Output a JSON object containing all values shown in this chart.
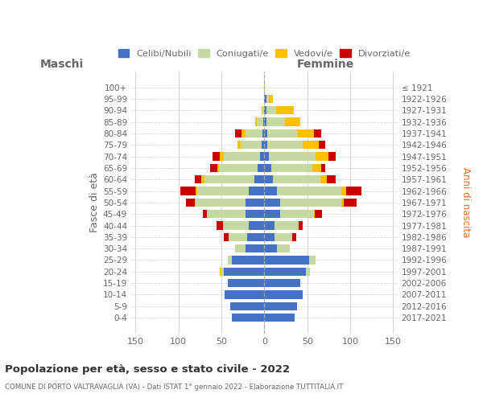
{
  "age_groups_display": [
    "0-4",
    "5-9",
    "10-14",
    "15-19",
    "20-24",
    "25-29",
    "30-34",
    "35-39",
    "40-44",
    "45-49",
    "50-54",
    "55-59",
    "60-64",
    "65-69",
    "70-74",
    "75-79",
    "80-84",
    "85-89",
    "90-94",
    "95-99",
    "100+"
  ],
  "birth_years_display": [
    "2017-2021",
    "2012-2016",
    "2007-2011",
    "2002-2006",
    "1997-2001",
    "1992-1996",
    "1987-1991",
    "1982-1986",
    "1977-1981",
    "1972-1976",
    "1967-1971",
    "1962-1966",
    "1957-1961",
    "1952-1956",
    "1947-1951",
    "1942-1946",
    "1937-1941",
    "1932-1936",
    "1927-1931",
    "1922-1926",
    "≤ 1921"
  ],
  "male_celibe": [
    38,
    40,
    46,
    43,
    47,
    38,
    22,
    20,
    18,
    22,
    22,
    18,
    12,
    8,
    5,
    3,
    2,
    1,
    0,
    0,
    0
  ],
  "male_coniugato": [
    0,
    0,
    0,
    0,
    3,
    5,
    12,
    22,
    30,
    45,
    58,
    60,
    58,
    45,
    42,
    25,
    20,
    8,
    2,
    0,
    0
  ],
  "male_vedovo": [
    0,
    0,
    0,
    0,
    2,
    0,
    0,
    0,
    0,
    0,
    1,
    2,
    3,
    2,
    5,
    3,
    5,
    2,
    1,
    0,
    0
  ],
  "male_divorziato": [
    0,
    0,
    0,
    0,
    0,
    0,
    0,
    5,
    8,
    5,
    10,
    18,
    8,
    8,
    8,
    0,
    7,
    0,
    0,
    0,
    0
  ],
  "female_nubile": [
    35,
    38,
    45,
    42,
    48,
    52,
    15,
    12,
    12,
    18,
    18,
    15,
    10,
    8,
    5,
    3,
    3,
    2,
    2,
    2,
    0
  ],
  "female_coniugata": [
    0,
    0,
    0,
    0,
    5,
    8,
    15,
    20,
    28,
    40,
    72,
    75,
    55,
    48,
    55,
    42,
    35,
    22,
    12,
    3,
    0
  ],
  "female_vedova": [
    0,
    0,
    0,
    0,
    0,
    0,
    0,
    0,
    0,
    1,
    2,
    5,
    8,
    10,
    15,
    18,
    20,
    18,
    20,
    5,
    1
  ],
  "female_divorziata": [
    0,
    0,
    0,
    0,
    0,
    0,
    0,
    5,
    5,
    8,
    15,
    18,
    10,
    5,
    8,
    8,
    8,
    0,
    0,
    0,
    0
  ],
  "color_celibe": "#4472c4",
  "color_coniugato": "#c5d9a0",
  "color_vedovo": "#ffc000",
  "color_divorziato": "#cc0000",
  "xlim": 155,
  "xticks": [
    -150,
    -100,
    -50,
    0,
    50,
    100,
    150
  ],
  "xticklabels": [
    "150",
    "100",
    "50",
    "0",
    "50",
    "100",
    "150"
  ],
  "title": "Popolazione per età, sesso e stato civile - 2022",
  "subtitle": "COMUNE DI PORTO VALTRAVAGLIA (VA) - Dati ISTAT 1° gennaio 2022 - Elaborazione TUTTITALIA.IT",
  "ylabel_left": "Fasce di età",
  "ylabel_right": "Anni di nascita",
  "label_maschi": "Maschi",
  "label_femmine": "Femmine",
  "legend_labels": [
    "Celibi/Nubili",
    "Coniugati/e",
    "Vedovi/e",
    "Divorziati/e"
  ],
  "bg_color": "#ffffff",
  "grid_color": "#cccccc",
  "text_color": "#666666"
}
